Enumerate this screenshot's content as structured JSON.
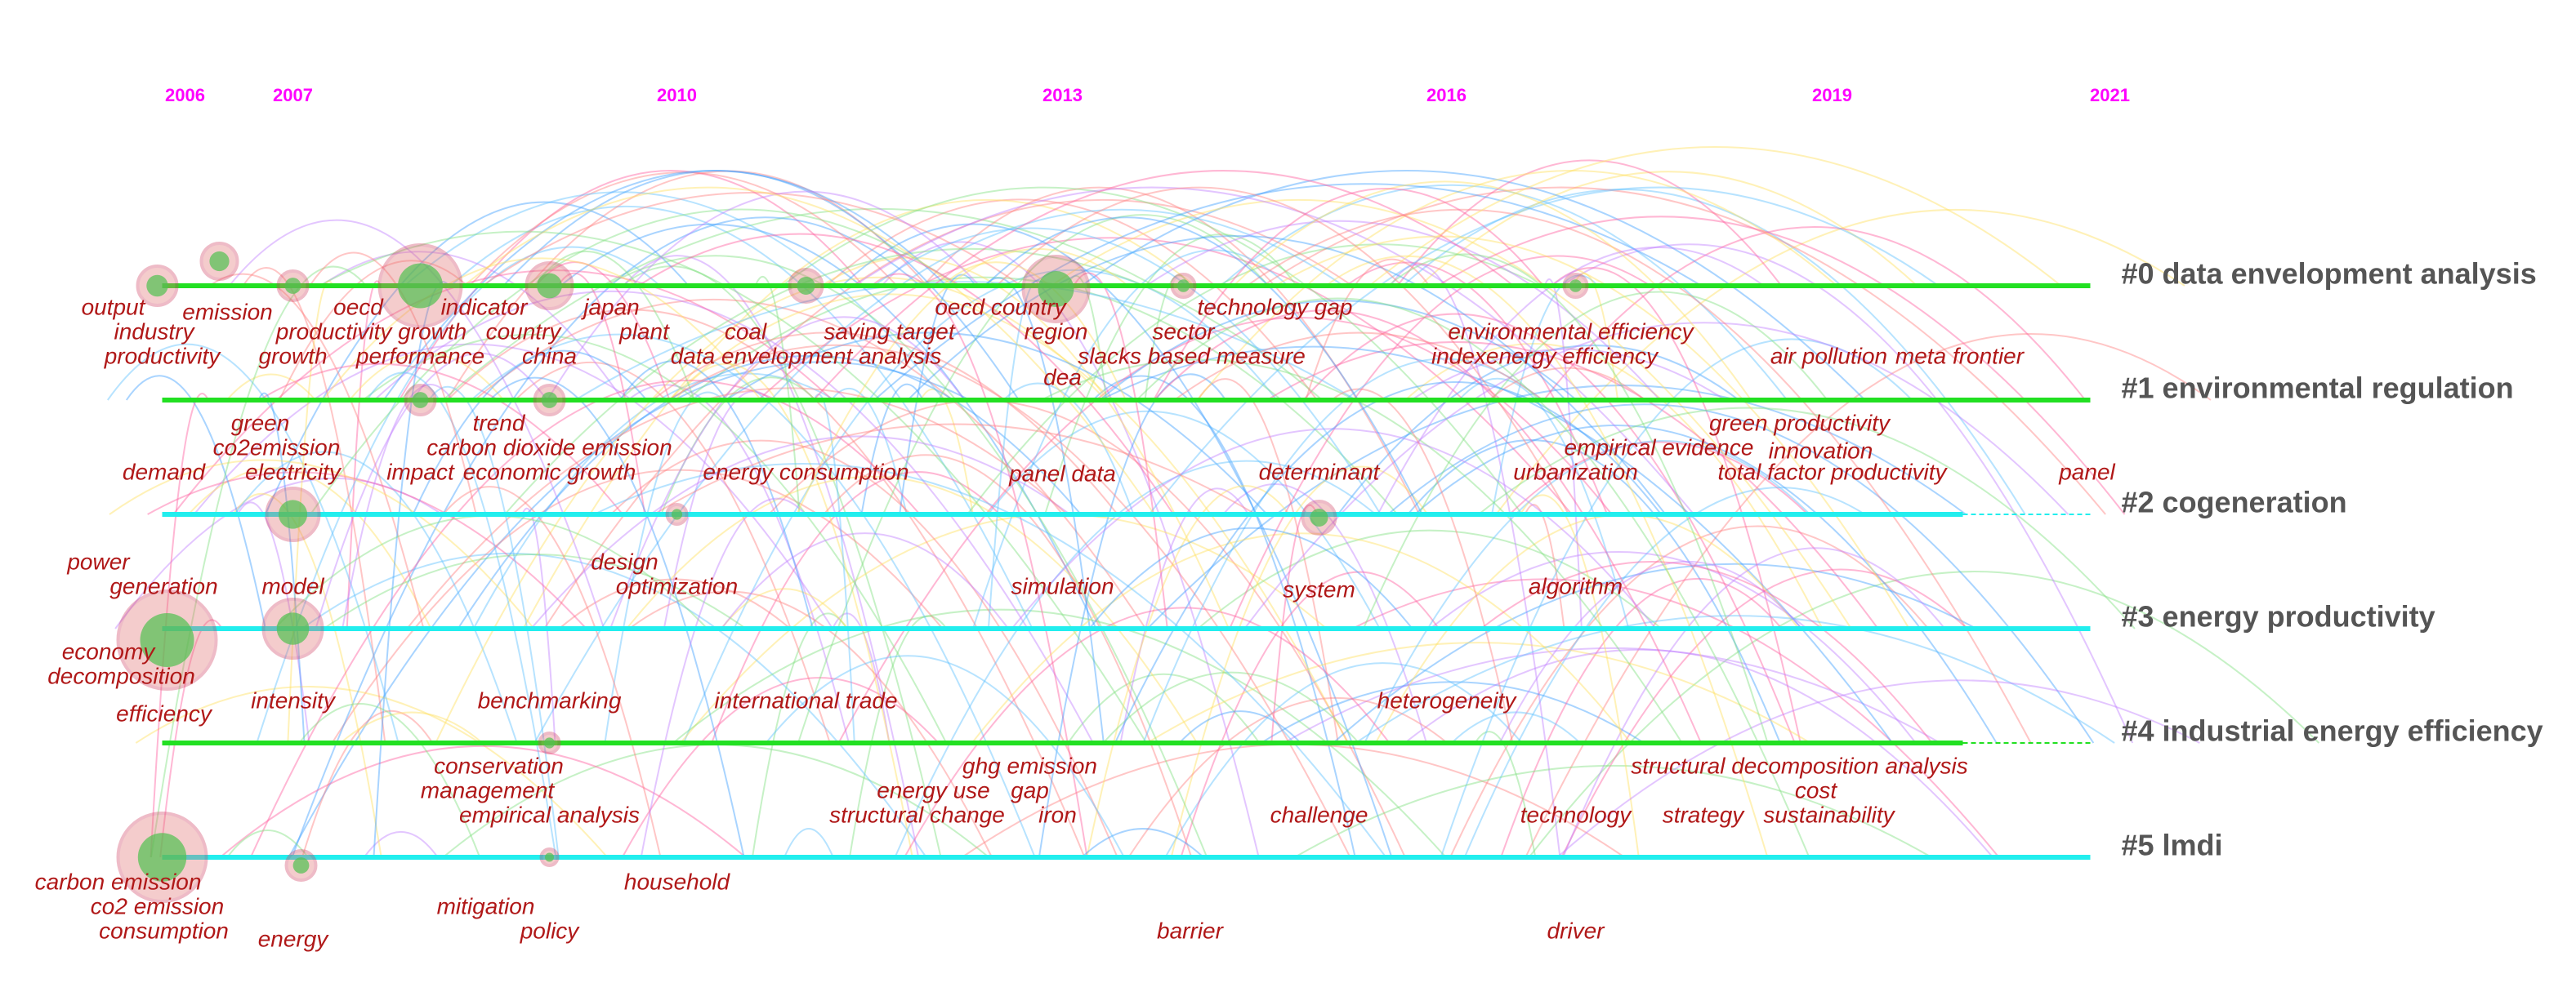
{
  "years": [
    "2006",
    "2007",
    "2010",
    "2013",
    "2016",
    "2019",
    "2021"
  ],
  "clusters": [
    {
      "label": "#0 data envelopment analysis"
    },
    {
      "label": "#1 environmental regulation"
    },
    {
      "label": "#2 cogeneration"
    },
    {
      "label": "#3 energy productivity"
    },
    {
      "label": "#4 industrial energy efficiency"
    },
    {
      "label": "#5 lmdi"
    }
  ],
  "keywords": [
    "output",
    "emission",
    "industry",
    "productivity",
    "oecd",
    "productivity growth",
    "indicator",
    "country",
    "performance",
    "growth",
    "china",
    "japan",
    "plant",
    "coal",
    "saving target",
    "data envelopment analysis",
    "oecd country",
    "region",
    "sector",
    "technology gap",
    "slacks based measure",
    "dea",
    "environmental efficiency",
    "indexenergy efficiency",
    "air pollution",
    "meta frontier",
    "green",
    "co2emission",
    "trend",
    "carbon dioxide emission",
    "demand",
    "electricity",
    "impact",
    "economic growth",
    "energy consumption",
    "panel data",
    "determinant",
    "urbanization",
    "empirical evidence",
    "green productivity",
    "innovation",
    "total factor productivity",
    "panel",
    "power",
    "generation",
    "model",
    "design",
    "optimization",
    "simulation",
    "system",
    "algorithm",
    "economy",
    "decomposition",
    "efficiency",
    "intensity",
    "benchmarking",
    "international trade",
    "heterogeneity",
    "conservation",
    "management",
    "empirical analysis",
    "ghg emission",
    "energy use",
    "gap",
    "structural change",
    "iron",
    "challenge",
    "structural decomposition analysis",
    "cost",
    "technology",
    "strategy",
    "sustainability",
    "carbon emission",
    "household",
    "co2 emission",
    "mitigation",
    "consumption",
    "energy",
    "policy",
    "barrier",
    "driver"
  ]
}
